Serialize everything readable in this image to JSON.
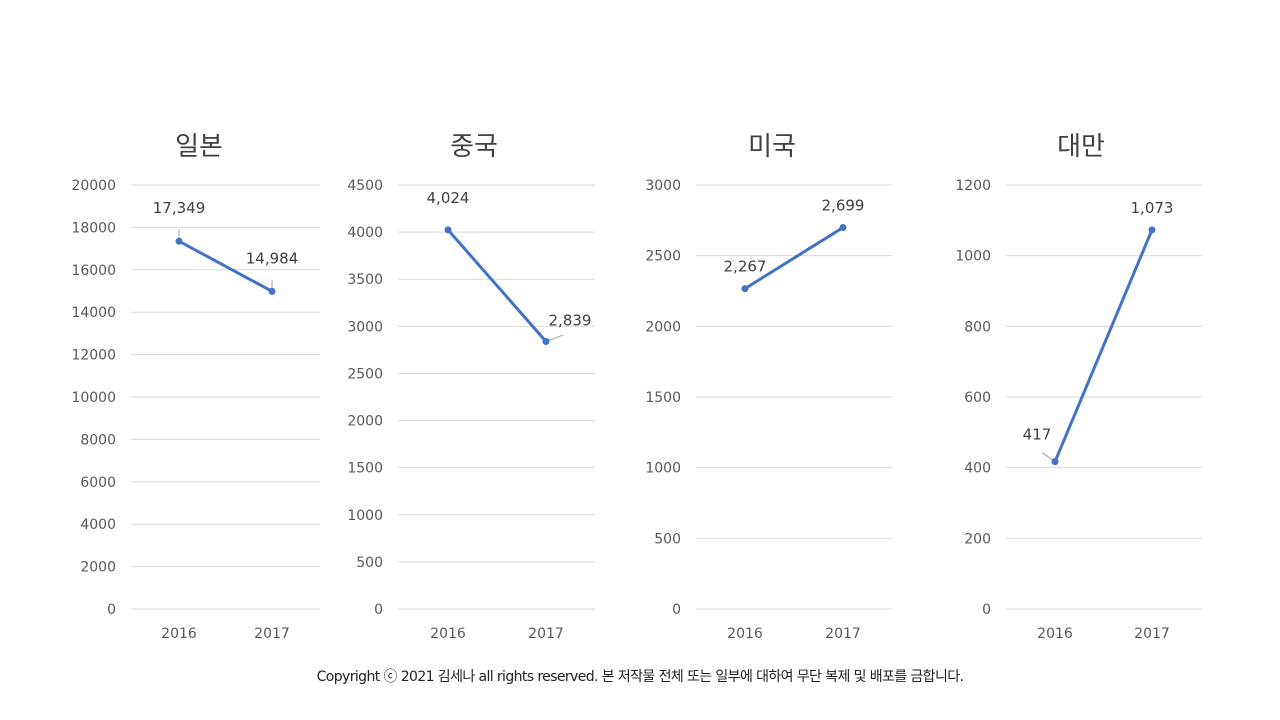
{
  "footer": {
    "copyright": "Copyright ⓒ 2021 김세나 all rights reserved. 본 저작물 전체 또는 일부에 대하여 무단 복제 및 배포를 금합니다."
  },
  "colors": {
    "line": "#4472C4",
    "grid": "#D9D9D9",
    "axis_text": "#595959",
    "title_text": "#404040",
    "label_text": "#404040",
    "leader": "#A6A6A6"
  },
  "chart_data": [
    {
      "type": "line",
      "title": "일본",
      "categories": [
        "2016",
        "2017"
      ],
      "values": [
        17349,
        14984
      ],
      "data_labels": [
        "17,349",
        "14,984"
      ],
      "ylim": [
        0,
        20000
      ],
      "yticks": [
        "0",
        "2000",
        "4000",
        "6000",
        "8000",
        "10000",
        "12000",
        "14000",
        "16000",
        "18000",
        "20000"
      ],
      "grid": true,
      "legend": "none"
    },
    {
      "type": "line",
      "title": "중국",
      "categories": [
        "2016",
        "2017"
      ],
      "values": [
        4024,
        2839
      ],
      "data_labels": [
        "4,024",
        "2,839"
      ],
      "ylim": [
        0,
        4500
      ],
      "yticks": [
        "0",
        "500",
        "1000",
        "1500",
        "2000",
        "2500",
        "3000",
        "3500",
        "4000",
        "4500"
      ],
      "grid": true,
      "legend": "none"
    },
    {
      "type": "line",
      "title": "미국",
      "categories": [
        "2016",
        "2017"
      ],
      "values": [
        2267,
        2699
      ],
      "data_labels": [
        "2,267",
        "2,699"
      ],
      "ylim": [
        0,
        3000
      ],
      "yticks": [
        "0",
        "500",
        "1000",
        "1500",
        "2000",
        "2500",
        "3000"
      ],
      "grid": true,
      "legend": "none"
    },
    {
      "type": "line",
      "title": "대만",
      "categories": [
        "2016",
        "2017"
      ],
      "values": [
        417,
        1073
      ],
      "data_labels": [
        "417",
        "1,073"
      ],
      "ylim": [
        0,
        1200
      ],
      "yticks": [
        "0",
        "200",
        "400",
        "600",
        "800",
        "1000",
        "1200"
      ],
      "grid": true,
      "legend": "none"
    }
  ]
}
